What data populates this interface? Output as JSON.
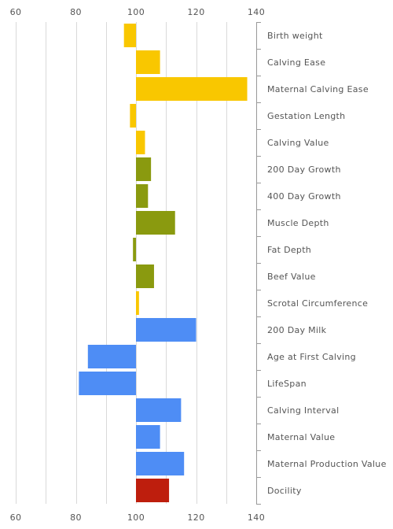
{
  "chart_data": {
    "type": "bar",
    "orientation": "horizontal",
    "baseline": 100,
    "xlim": [
      60,
      140
    ],
    "x_ticks": [
      60,
      80,
      100,
      120,
      140
    ],
    "x_ticks_position": "top and bottom",
    "grid": true,
    "category_labels_position": "right",
    "colors": {
      "yellow": "#F9C700",
      "olive": "#8A9A0F",
      "blue": "#4E8DF5",
      "red": "#BE1E0D",
      "grid": "#d9d9d9",
      "axis": "#999999",
      "text": "#555555"
    },
    "categories": [
      "Birth weight",
      "Calving Ease",
      "Maternal Calving Ease",
      "Gestation Length",
      "Calving Value",
      "200 Day Growth",
      "400 Day Growth",
      "Muscle Depth",
      "Fat Depth",
      "Beef Value",
      "Scrotal Circumference",
      "200 Day Milk",
      "Age at First Calving",
      "LifeSpan",
      "Calving Interval",
      "Maternal Value",
      "Maternal Production Value",
      "Docility"
    ],
    "values": [
      96,
      108,
      137,
      98,
      103,
      105,
      104,
      113,
      99,
      106,
      101,
      120,
      84,
      81,
      115,
      108,
      116,
      111
    ],
    "bar_colors": [
      "yellow",
      "yellow",
      "yellow",
      "yellow",
      "yellow",
      "olive",
      "olive",
      "olive",
      "olive",
      "olive",
      "yellow",
      "blue",
      "blue",
      "blue",
      "blue",
      "blue",
      "blue",
      "red"
    ]
  }
}
